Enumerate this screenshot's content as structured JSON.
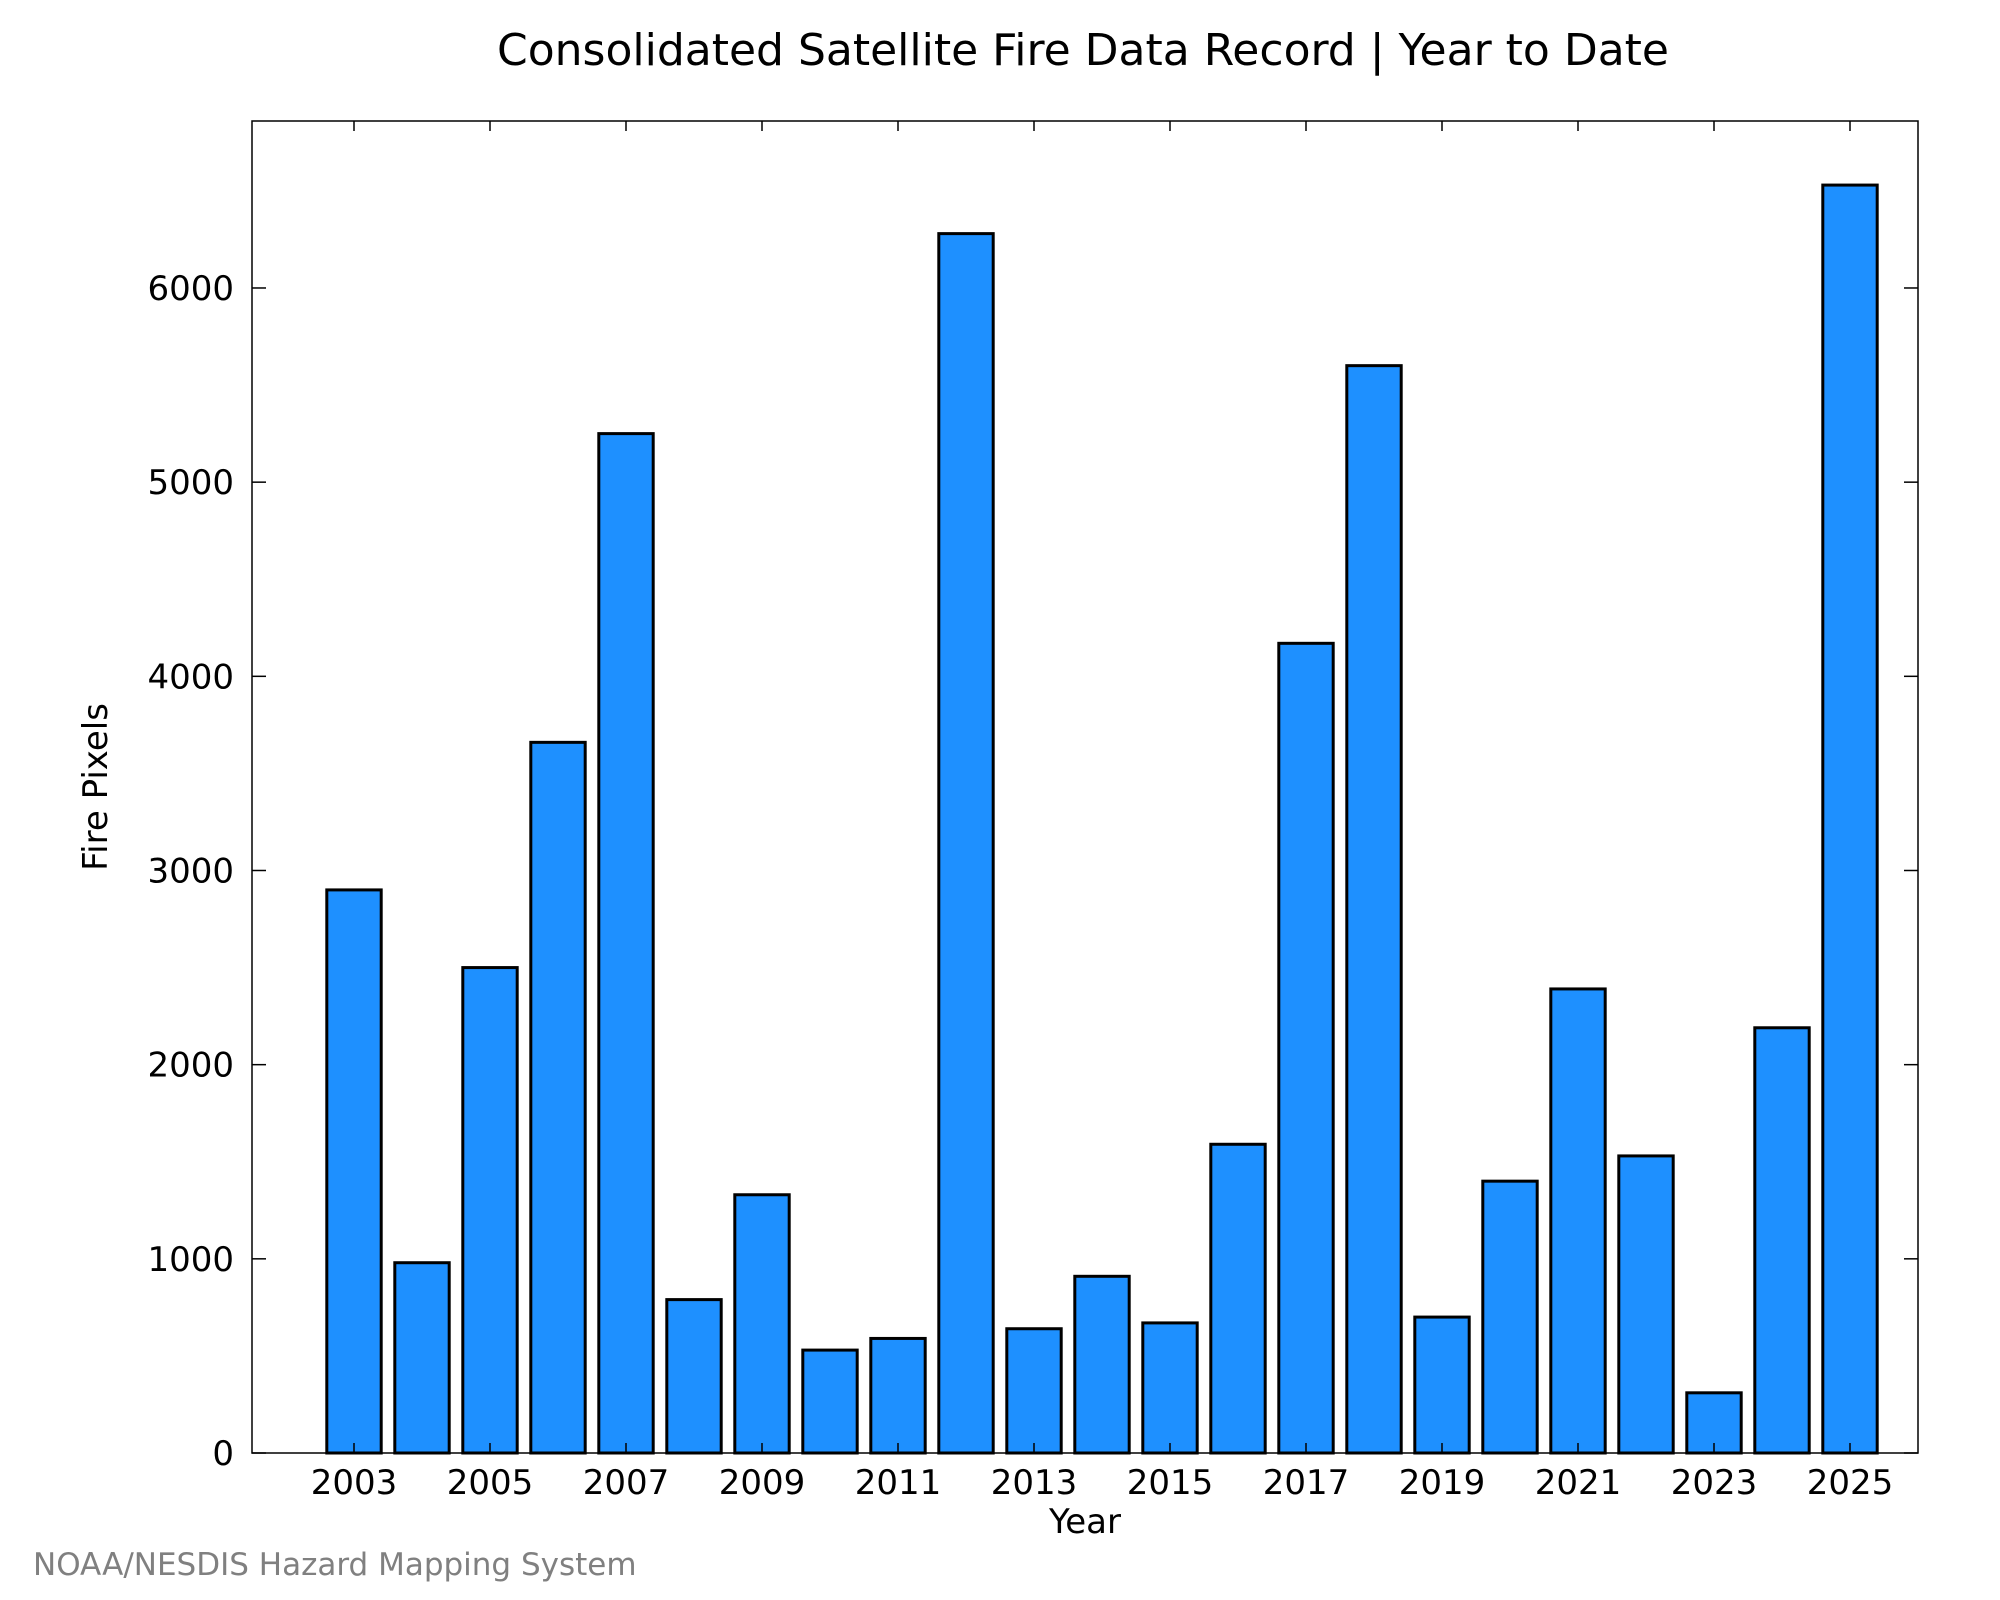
{
  "chart_data": {
    "type": "bar",
    "title": "Consolidated Satellite Fire Data Record | Year to Date",
    "xlabel": "Year",
    "ylabel": "Fire Pixels",
    "categories": [
      2003,
      2004,
      2005,
      2006,
      2007,
      2008,
      2009,
      2010,
      2011,
      2012,
      2013,
      2014,
      2015,
      2016,
      2017,
      2018,
      2019,
      2020,
      2021,
      2022,
      2023,
      2024,
      2025
    ],
    "values": [
      2900,
      980,
      2500,
      3660,
      5250,
      790,
      1330,
      530,
      590,
      6280,
      640,
      910,
      670,
      1590,
      4170,
      5600,
      700,
      1400,
      2390,
      1530,
      310,
      2190,
      6530
    ],
    "xtick_labels": [
      "2003",
      "2005",
      "2007",
      "2009",
      "2011",
      "2013",
      "2015",
      "2017",
      "2019",
      "2021",
      "2023",
      "2025"
    ],
    "yticks": [
      0,
      1000,
      2000,
      3000,
      4000,
      5000,
      6000
    ],
    "ylim": [
      0,
      6860
    ],
    "xlim": [
      2001.5,
      2026
    ],
    "bar_color": "#1e90ff",
    "grid": false,
    "legend": "none"
  },
  "footer": {
    "credit": "NOAA/NESDIS Hazard Mapping System"
  }
}
